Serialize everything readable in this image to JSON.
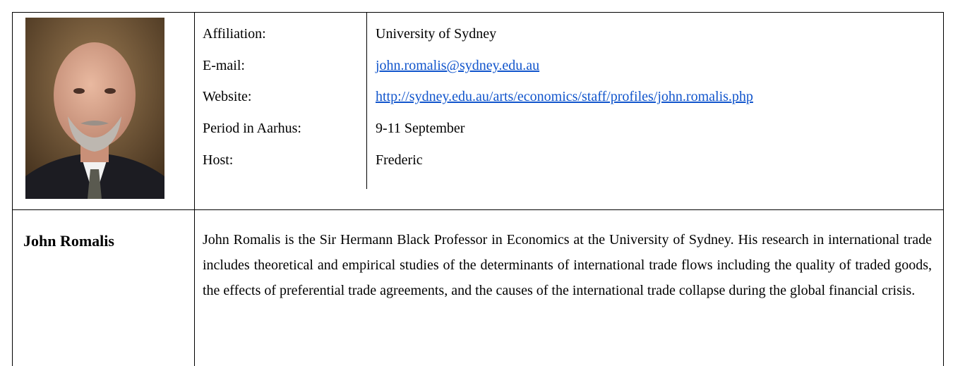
{
  "profile": {
    "fields": [
      {
        "label": "Affiliation:",
        "value": "University of Sydney"
      },
      {
        "label": "E-mail:",
        "value": "john.romalis@sydney.edu.au"
      },
      {
        "label": "Website:",
        "value": "http://sydney.edu.au/arts/economics/staff/profiles/john.romalis.php"
      },
      {
        "label": "Period in Aarhus:",
        "value": "9-11 September"
      },
      {
        "label": "Host:",
        "value": "Frederic"
      }
    ],
    "name": "John Romalis",
    "bio": "John Romalis is the Sir Hermann Black Professor in Economics at the University of Sydney. His research in international trade includes theoretical and empirical studies of the determinants of international trade flows including the quality of traded goods, the effects of preferential trade agreements, and the causes of the international trade collapse during the global financial crisis."
  }
}
